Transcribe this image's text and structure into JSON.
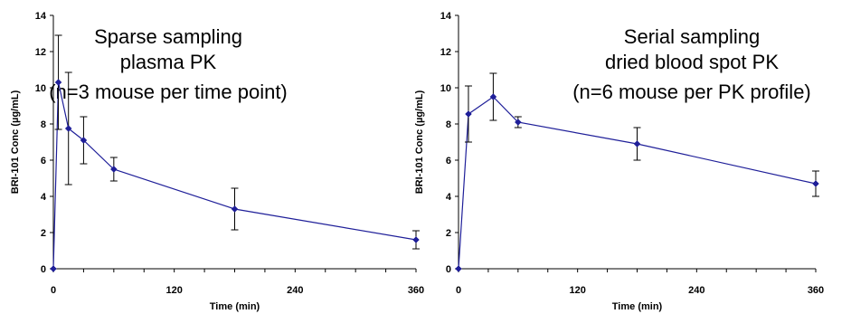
{
  "chart_data": [
    {
      "type": "line",
      "title": "",
      "annotation_lines": [
        "Sparse sampling",
        "plasma PK",
        "(n=3 mouse per time point)"
      ],
      "xlabel": "Time (min)",
      "ylabel": "BRI-101 Conc (µg/mL)",
      "xlim": [
        0,
        360
      ],
      "ylim": [
        0,
        14
      ],
      "xticks": [
        "0",
        "120",
        "240",
        "360"
      ],
      "yticks": [
        "0",
        "2",
        "4",
        "6",
        "8",
        "10",
        "12",
        "14"
      ],
      "grid": false,
      "series": [
        {
          "color": "#1f1f99",
          "x": [
            0,
            5,
            15,
            30,
            60,
            180,
            360
          ],
          "y": [
            0,
            10.3,
            7.75,
            7.1,
            5.5,
            3.3,
            1.6
          ],
          "err": [
            0,
            2.6,
            3.1,
            1.3,
            0.65,
            1.15,
            0.5
          ]
        }
      ]
    },
    {
      "type": "line",
      "title": "",
      "annotation_lines": [
        "Serial sampling",
        "dried blood spot PK",
        "(n=6 mouse per PK profile)"
      ],
      "xlabel": "Time (min)",
      "ylabel": "BRI-101 Conc (µg/mL)",
      "xlim": [
        0,
        360
      ],
      "ylim": [
        0,
        14
      ],
      "xticks": [
        "0",
        "120",
        "240",
        "360"
      ],
      "yticks": [
        "0",
        "2",
        "4",
        "6",
        "8",
        "10",
        "12",
        "14"
      ],
      "grid": false,
      "series": [
        {
          "color": "#1f1f99",
          "x": [
            0,
            10,
            35,
            60,
            180,
            360
          ],
          "y": [
            0,
            8.55,
            9.5,
            8.1,
            6.9,
            4.7
          ],
          "err": [
            0,
            1.55,
            1.3,
            0.3,
            0.9,
            0.7
          ]
        }
      ]
    }
  ]
}
